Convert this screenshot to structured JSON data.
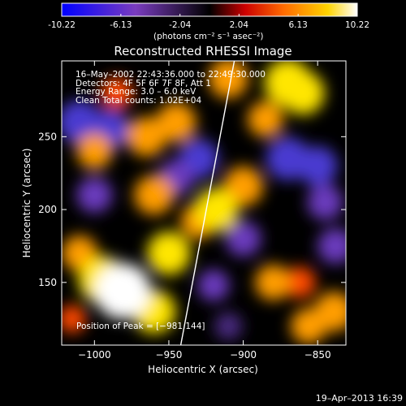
{
  "colorbar": {
    "tick_labels": [
      "-10.22",
      "-6.13",
      "-2.04",
      "2.04",
      "6.13",
      "10.22"
    ],
    "units_label": "(photons cm⁻² s⁻¹ asec⁻²)",
    "range": [
      -10.22,
      10.22
    ],
    "colors": [
      "#0000ff",
      "#7a3cbf",
      "#000000",
      "#cc0000",
      "#ff6a00",
      "#ffd400",
      "#ffffff"
    ]
  },
  "plot": {
    "title": "Reconstructed RHESSI Image",
    "info_lines": [
      "16–May–2002 22:43:36.000 to 22:49:30.000",
      "Detectors: 4F 5F 6F 7F 8F, Att 1",
      "Energy Range: 3.0 – 6.0 keV",
      "Clean    Total counts: 1.02E+04"
    ],
    "peak_label": "Position of Peak = [−981,144]",
    "x_axis_label": "Heliocentric X (arcsec)",
    "y_axis_label": "Heliocentric Y (arcsec)",
    "x_ticks": [
      "−1000",
      "−950",
      "−900",
      "−850"
    ],
    "y_ticks": [
      "150",
      "200",
      "250"
    ],
    "footer_date": "19–Apr–2013 16:39"
  },
  "chart_data": {
    "type": "heatmap",
    "title": "Reconstructed RHESSI Image",
    "xlabel": "Heliocentric X (arcsec)",
    "ylabel": "Heliocentric Y (arcsec)",
    "xlim": [
      -1022,
      -831
    ],
    "ylim": [
      107,
      302
    ],
    "x_ticks": [
      -1000,
      -950,
      -900,
      -850
    ],
    "y_ticks": [
      150,
      200,
      250
    ],
    "colorbar_range": [
      -10.22,
      10.22
    ],
    "peak_position": [
      -981,
      144
    ],
    "limb_line": [
      [
        -942,
        107
      ],
      [
        -906,
        302
      ]
    ],
    "hotspots": [
      {
        "x": -981,
        "y": 144,
        "v": 10.2
      },
      {
        "x": -995,
        "y": 152,
        "v": 8
      },
      {
        "x": -960,
        "y": 130,
        "v": 7
      },
      {
        "x": -950,
        "y": 170,
        "v": 7
      },
      {
        "x": -918,
        "y": 200,
        "v": 7
      },
      {
        "x": -900,
        "y": 216,
        "v": 6
      },
      {
        "x": -930,
        "y": 192,
        "v": 5
      },
      {
        "x": -960,
        "y": 210,
        "v": 6
      },
      {
        "x": -880,
        "y": 150,
        "v": 5
      },
      {
        "x": -856,
        "y": 120,
        "v": 5
      },
      {
        "x": -839,
        "y": 130,
        "v": 6
      },
      {
        "x": -862,
        "y": 150,
        "v": 4
      },
      {
        "x": -870,
        "y": 287,
        "v": 8
      },
      {
        "x": -860,
        "y": 280,
        "v": 7
      },
      {
        "x": -910,
        "y": 290,
        "v": 6
      },
      {
        "x": -885,
        "y": 262,
        "v": 5
      },
      {
        "x": -965,
        "y": 250,
        "v": 6
      },
      {
        "x": -945,
        "y": 260,
        "v": 6
      },
      {
        "x": -1010,
        "y": 170,
        "v": 5
      },
      {
        "x": -1015,
        "y": 125,
        "v": 3
      },
      {
        "x": -1000,
        "y": 240,
        "v": 5
      },
      {
        "x": -985,
        "y": 280,
        "v": 4
      },
      {
        "x": -1010,
        "y": 260,
        "v": -7
      },
      {
        "x": -990,
        "y": 255,
        "v": -6
      },
      {
        "x": -1000,
        "y": 210,
        "v": -5
      },
      {
        "x": -930,
        "y": 235,
        "v": -6
      },
      {
        "x": -945,
        "y": 222,
        "v": -5
      },
      {
        "x": -870,
        "y": 235,
        "v": -7
      },
      {
        "x": -850,
        "y": 230,
        "v": -6
      },
      {
        "x": -845,
        "y": 205,
        "v": -5
      },
      {
        "x": -838,
        "y": 175,
        "v": -5
      },
      {
        "x": -900,
        "y": 180,
        "v": -5
      },
      {
        "x": -920,
        "y": 148,
        "v": -4
      },
      {
        "x": -910,
        "y": 120,
        "v": -3
      }
    ]
  }
}
